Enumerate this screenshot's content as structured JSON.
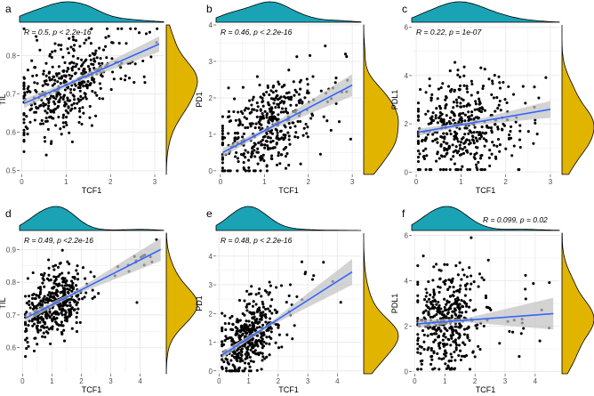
{
  "colors": {
    "top_density": "#1aa3b4",
    "right_density": "#e1b400",
    "points": "#000000",
    "fit_line": "#3366ff",
    "ci_band": "#c2c2c2",
    "grid": "#ebebeb"
  },
  "chart_data": [
    {
      "panel": "a",
      "type": "scatter",
      "xlabel": "TCF1",
      "ylabel": "TIL",
      "xlim": [
        -0.05,
        3.2
      ],
      "ylim": [
        0.49,
        0.88
      ],
      "xticks": [
        0,
        1,
        2,
        3
      ],
      "xtick_labels": [
        "0",
        "1",
        "2",
        "3"
      ],
      "yticks": [
        0.5,
        0.6,
        0.7,
        0.8
      ],
      "ytick_labels": [
        "0.5",
        "0.6",
        "0.7",
        "0.8"
      ],
      "annotation": "R = 0.5, p < 2.2e-16",
      "annotation_pos": "top-left",
      "fit": {
        "x0": 0.05,
        "x1": 3.1,
        "y0": 0.675,
        "y1": 0.83,
        "ci0": 0.012,
        "ci1": 0.02
      },
      "sim": {
        "xm": 1.0,
        "xsd": 0.5,
        "xmin": 0.05,
        "xmax": 3.1,
        "ysd": 0.055,
        "ymin": 0.5,
        "ymax": 0.87,
        "n": 430,
        "seed": 11
      }
    },
    {
      "panel": "b",
      "type": "scatter",
      "xlabel": "TCF1",
      "ylabel": "PD1",
      "xlim": [
        -0.1,
        3.2
      ],
      "ylim": [
        -0.1,
        4.0
      ],
      "xticks": [
        0,
        1,
        2,
        3
      ],
      "xtick_labels": [
        "0",
        "1",
        "2",
        "3"
      ],
      "yticks": [
        0,
        1,
        2,
        3,
        4
      ],
      "ytick_labels": [
        "0",
        "1",
        "2",
        "3",
        "4"
      ],
      "annotation": "R = 0.46, p < 2.2e-16",
      "annotation_pos": "top-left",
      "fit": {
        "x0": 0.05,
        "x1": 3.0,
        "y0": 0.5,
        "y1": 2.35,
        "ci0": 0.12,
        "ci1": 0.3
      },
      "sim": {
        "xm": 1.0,
        "xsd": 0.5,
        "xmin": 0.05,
        "xmax": 3.0,
        "ysd": 0.65,
        "ymin": 0.0,
        "ymax": 3.9,
        "n": 430,
        "seed": 23
      }
    },
    {
      "panel": "c",
      "type": "scatter",
      "xlabel": "TCF1",
      "ylabel": "PDL1",
      "xlim": [
        -0.1,
        3.2
      ],
      "ylim": [
        -0.1,
        6.1
      ],
      "xticks": [
        0,
        1,
        2,
        3
      ],
      "xtick_labels": [
        "0",
        "1",
        "2",
        "3"
      ],
      "yticks": [
        0,
        2,
        4,
        6
      ],
      "ytick_labels": [
        "0",
        "2",
        "4",
        "6"
      ],
      "annotation": "R = 0.22, p = 1e-07",
      "annotation_pos": "top-left",
      "fit": {
        "x0": 0.05,
        "x1": 3.0,
        "y0": 1.65,
        "y1": 2.6,
        "ci0": 0.15,
        "ci1": 0.35
      },
      "sim": {
        "xm": 1.0,
        "xsd": 0.5,
        "xmin": 0.05,
        "xmax": 3.0,
        "ysd": 1.0,
        "ymin": 0.1,
        "ymax": 5.9,
        "n": 430,
        "seed": 37
      }
    },
    {
      "panel": "d",
      "type": "scatter",
      "xlabel": "TCF1",
      "ylabel": "TIL",
      "xlim": [
        -0.1,
        4.8
      ],
      "ylim": [
        0.52,
        0.95
      ],
      "xticks": [
        0,
        1,
        2,
        3,
        4
      ],
      "xtick_labels": [
        "0",
        "1",
        "2",
        "3",
        "4"
      ],
      "yticks": [
        0.6,
        0.7,
        0.8,
        0.9
      ],
      "ytick_labels": [
        "0.6",
        "0.7",
        "0.8",
        "0.9"
      ],
      "annotation": "R = 0.49, p <2.2e-16",
      "annotation_pos": "top-left",
      "fit": {
        "x0": 0.1,
        "x1": 4.7,
        "y0": 0.69,
        "y1": 0.9,
        "ci0": 0.012,
        "ci1": 0.035
      },
      "sim": {
        "xm": 1.0,
        "xsd": 0.45,
        "xmin": 0.1,
        "xmax": 4.7,
        "ysd": 0.05,
        "ymin": 0.54,
        "ymax": 0.93,
        "n": 430,
        "seed": 41
      }
    },
    {
      "panel": "e",
      "type": "scatter",
      "xlabel": "TCF1",
      "ylabel": "PD1",
      "xlim": [
        -0.1,
        4.8
      ],
      "ylim": [
        -0.1,
        4.8
      ],
      "xticks": [
        0,
        1,
        2,
        3,
        4
      ],
      "xtick_labels": [
        "0",
        "1",
        "2",
        "3",
        "4"
      ],
      "yticks": [
        0,
        1,
        2,
        3,
        4
      ],
      "ytick_labels": [
        "0",
        "1",
        "2",
        "3",
        "4"
      ],
      "annotation": "R = 0.48, p < 2.2e-16",
      "annotation_pos": "top-left",
      "fit": {
        "x0": 0.1,
        "x1": 4.5,
        "y0": 0.55,
        "y1": 3.45,
        "ci0": 0.12,
        "ci1": 0.45
      },
      "sim": {
        "xm": 1.0,
        "xsd": 0.45,
        "xmin": 0.1,
        "xmax": 4.5,
        "ysd": 0.6,
        "ymin": 0.0,
        "ymax": 4.6,
        "n": 430,
        "seed": 53
      }
    },
    {
      "panel": "f",
      "type": "scatter",
      "xlabel": "TCF1",
      "ylabel": "PDL1",
      "xlim": [
        -0.1,
        4.8
      ],
      "ylim": [
        -0.1,
        6.1
      ],
      "xticks": [
        0,
        1,
        2,
        3,
        4
      ],
      "xtick_labels": [
        "0",
        "1",
        "2",
        "3",
        "4"
      ],
      "yticks": [
        0,
        2,
        4,
        6
      ],
      "ytick_labels": [
        "0",
        "2",
        "4",
        "6"
      ],
      "annotation": "R = 0.099, p = 0.02",
      "annotation_pos": "above-plot",
      "fit": {
        "x0": 0.1,
        "x1": 4.6,
        "y0": 2.1,
        "y1": 2.55,
        "ci0": 0.18,
        "ci1": 0.7
      },
      "sim": {
        "xm": 1.0,
        "xsd": 0.45,
        "xmin": 0.1,
        "xmax": 4.6,
        "ysd": 1.1,
        "ymin": 0.1,
        "ymax": 5.9,
        "n": 430,
        "seed": 67
      }
    }
  ]
}
